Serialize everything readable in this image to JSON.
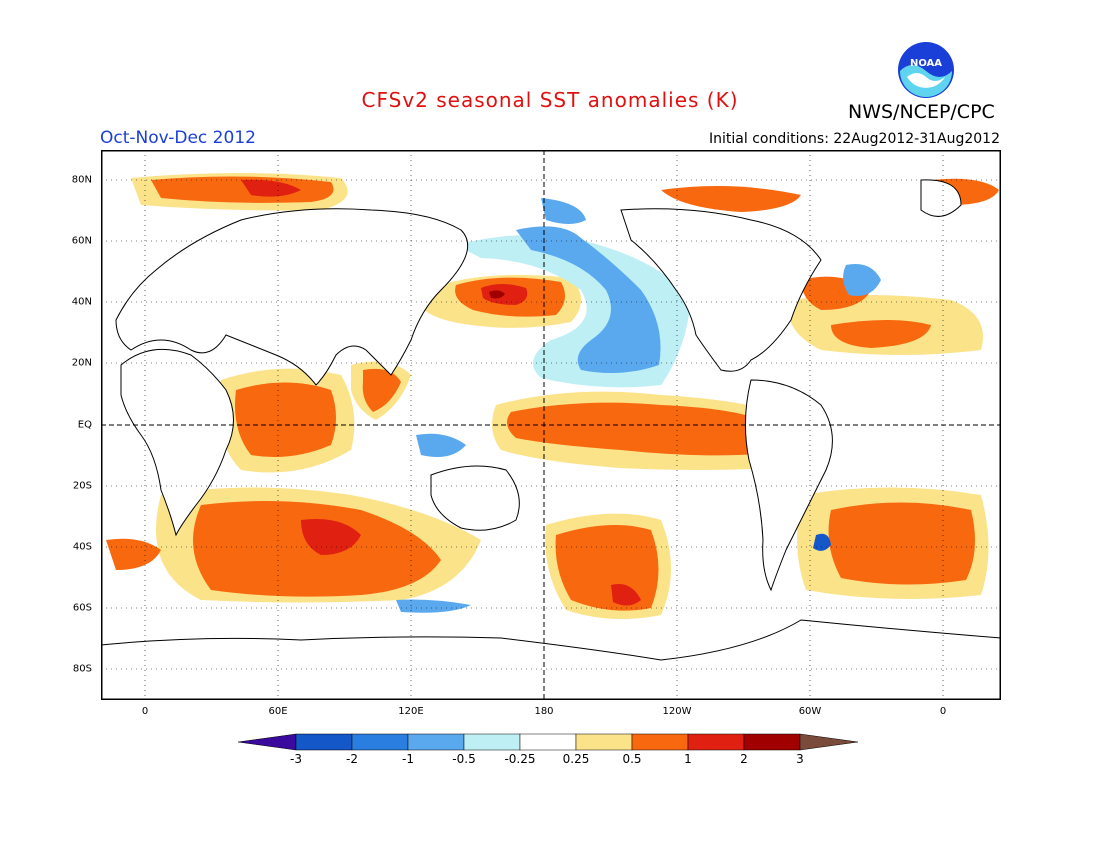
{
  "header": {
    "title": "CFSv2 seasonal SST anomalies (K)",
    "period": "Oct-Nov-Dec 2012",
    "initial_conditions": "Initial conditions: 22Aug2012-31Aug2012",
    "agency": "NWS/NCEP/CPC",
    "logo_text": "NOAA"
  },
  "map": {
    "lat_labels": [
      "80N",
      "60N",
      "40N",
      "20N",
      "EQ",
      "20S",
      "40S",
      "60S",
      "80S"
    ],
    "lon_labels": [
      "0",
      "60E",
      "120E",
      "180",
      "120W",
      "60W",
      "0"
    ],
    "reference_lines": [
      "EQ",
      "180"
    ]
  },
  "colorbar": {
    "labels": [
      "-3",
      "-2",
      "-1",
      "-0.5",
      "-0.25",
      "0.25",
      "0.5",
      "1",
      "2",
      "3"
    ],
    "colors": [
      "#3a0a9e",
      "#1457c8",
      "#2a7ee0",
      "#5aa8ee",
      "#bdeff5",
      "#ffffff",
      "#fbe38a",
      "#f8680f",
      "#e02010",
      "#a00000",
      "#7a4a3a"
    ]
  },
  "anomaly_colors": {
    "neg_strong": "#1457c8",
    "neg_mid": "#5aa8ee",
    "neg_weak": "#bdeff5",
    "pos_weak": "#fbe38a",
    "pos_mid": "#f8680f",
    "pos_strong": "#e02010",
    "pos_max": "#a00000"
  }
}
